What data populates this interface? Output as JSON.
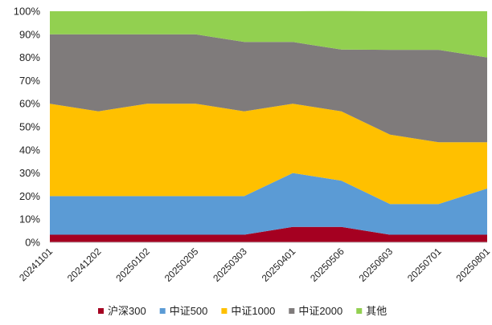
{
  "chart_data": {
    "type": "area",
    "stacked": true,
    "title": "",
    "xlabel": "",
    "ylabel": "",
    "ylim": [
      0,
      100
    ],
    "yticks": [
      "0%",
      "10%",
      "20%",
      "30%",
      "40%",
      "50%",
      "60%",
      "70%",
      "80%",
      "90%",
      "100%"
    ],
    "categories": [
      "20241101",
      "20241202",
      "20250102",
      "20250205",
      "20250303",
      "20250401",
      "20250506",
      "20250603",
      "20250701",
      "20250801"
    ],
    "series": [
      {
        "name": "沪深300",
        "color": "#a50021",
        "values": [
          3.3,
          3.3,
          3.3,
          3.3,
          3.3,
          6.7,
          6.7,
          3.3,
          3.3,
          3.3
        ]
      },
      {
        "name": "中证500",
        "color": "#5b9bd5",
        "values": [
          16.7,
          16.7,
          16.7,
          16.7,
          16.7,
          23.3,
          20,
          13.3,
          13.3,
          20
        ]
      },
      {
        "name": "中证1000",
        "color": "#ffc000",
        "values": [
          40,
          36.7,
          40,
          40,
          36.7,
          30,
          30,
          30,
          26.7,
          20
        ]
      },
      {
        "name": "中证2000",
        "color": "#7f7b7b",
        "values": [
          30,
          33.3,
          30,
          30,
          30,
          26.7,
          26.7,
          36.7,
          40,
          36.7
        ]
      },
      {
        "name": "其他",
        "color": "#92d050",
        "values": [
          10,
          10,
          10,
          10,
          13.3,
          13.3,
          16.7,
          16.7,
          16.7,
          20
        ]
      }
    ],
    "legend_position": "bottom",
    "grid": false
  }
}
